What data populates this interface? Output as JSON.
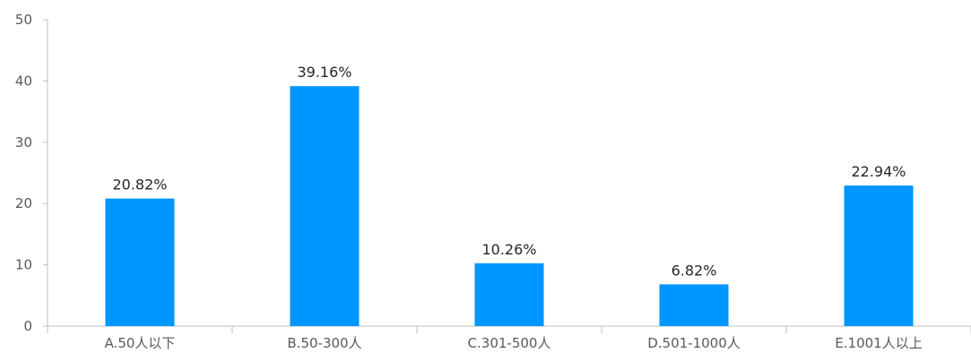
{
  "chart_data": {
    "type": "bar",
    "categories": [
      "A.50人以下",
      "B.50-300人",
      "C.301-500人",
      "D.501-1000人",
      "E.1001人以上"
    ],
    "values": [
      20.82,
      39.16,
      10.26,
      6.82,
      22.94
    ],
    "data_labels": [
      "20.82%",
      "39.16%",
      "10.26%",
      "6.82%",
      "22.94%"
    ],
    "y_ticks": [
      0,
      10,
      20,
      30,
      40,
      50
    ],
    "ylim": [
      0,
      50
    ],
    "title": "",
    "xlabel": "",
    "ylabel": "",
    "bar_color": "#0096FF",
    "grid": false,
    "legend": false
  }
}
